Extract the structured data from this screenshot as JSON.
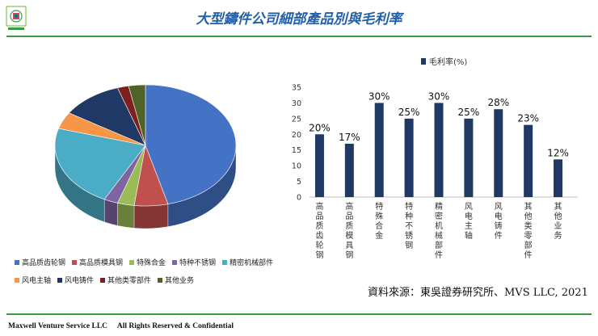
{
  "header": {
    "title": "大型鑄件公司細部產品別與毛利率"
  },
  "footer": {
    "company": "Maxwell Venture Service LLC",
    "rights": "All Rights Reserved & Confidential"
  },
  "source": "資料來源：東吳證券研究所、MVS LLC, 2021",
  "chart_data": [
    {
      "type": "pie",
      "title": "",
      "categories": [
        "高品质齿轮钢",
        "高品质模具钢",
        "特殊合金",
        "特种不锈钢",
        "精密机械部件",
        "风电主轴",
        "风电铸件",
        "其他类零部件",
        "其他业务"
      ],
      "values": [
        46,
        6,
        3,
        2.5,
        22,
        4.5,
        11,
        2,
        3
      ],
      "colors": [
        "#4472c4",
        "#c0504d",
        "#9bbb59",
        "#8064a2",
        "#4bacc6",
        "#f79646",
        "#1f3864",
        "#7b1f1f",
        "#4f6228"
      ],
      "legend_position": "bottom"
    },
    {
      "type": "bar",
      "title": "",
      "series_name": "毛利率(%)",
      "categories": [
        "高品质齿轮钢",
        "高品质模具钢",
        "特殊合金",
        "特种不锈钢",
        "精密机械部件",
        "风电主轴",
        "风电铸件",
        "其他类零部件",
        "其他业务"
      ],
      "values": [
        20,
        17,
        30,
        25,
        30,
        25,
        28,
        23,
        12
      ],
      "data_labels": [
        "20%",
        "17%",
        "30%",
        "25%",
        "30%",
        "25%",
        "28%",
        "23%",
        "12%"
      ],
      "ylim": [
        0,
        35
      ],
      "yticks": [
        0,
        5,
        10,
        15,
        20,
        25,
        30,
        35
      ],
      "color": "#1f3864",
      "legend_position": "top"
    }
  ]
}
